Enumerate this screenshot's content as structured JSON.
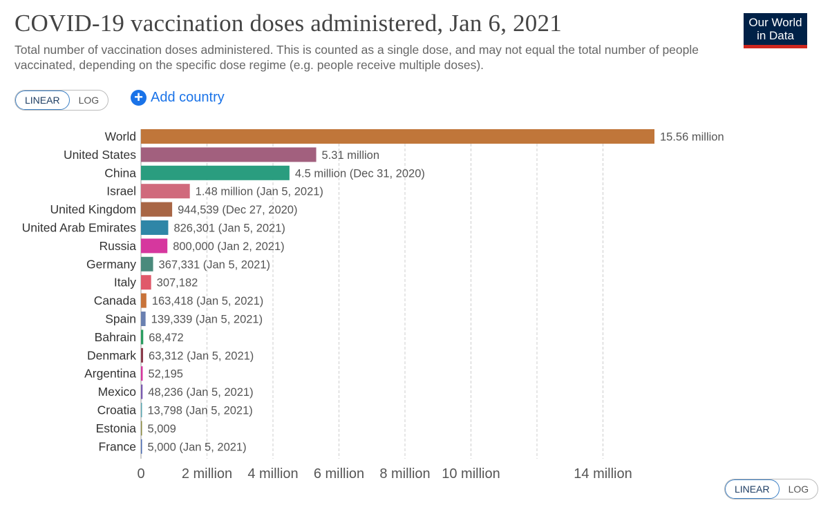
{
  "header": {
    "title": "COVID-19 vaccination doses administered, Jan 6, 2021",
    "subtitle": "Total number of vaccination doses administered. This is counted as a single dose, and may not equal the total number of people vaccinated, depending on the specific dose regime (e.g. people receive multiple doses).",
    "logo_line1": "Our World",
    "logo_line2": "in Data"
  },
  "controls": {
    "linear_label": "LINEAR",
    "log_label": "LOG",
    "add_country_label": "Add country",
    "add_icon": "+"
  },
  "colors": {
    "brand_navy": "#002147",
    "brand_red": "#ce261e",
    "link_blue": "#1a73e8"
  },
  "chart_data": {
    "type": "bar",
    "orientation": "horizontal",
    "grid": true,
    "xlim": [
      0,
      15560000
    ],
    "x_ticks": [
      {
        "value": 0,
        "label": "0"
      },
      {
        "value": 2000000,
        "label": "2 million"
      },
      {
        "value": 4000000,
        "label": "4 million"
      },
      {
        "value": 6000000,
        "label": "6 million"
      },
      {
        "value": 8000000,
        "label": "8 million"
      },
      {
        "value": 10000000,
        "label": "10 million"
      },
      {
        "value": 12000000,
        "label": ""
      },
      {
        "value": 14000000,
        "label": "14 million"
      }
    ],
    "bars": [
      {
        "category": "World",
        "value": 15560000,
        "label": "15.56 million",
        "color": "#c0763a"
      },
      {
        "category": "United States",
        "value": 5310000,
        "label": "5.31 million",
        "color": "#a2607e"
      },
      {
        "category": "China",
        "value": 4500000,
        "label": "4.5 million (Dec 31, 2020)",
        "color": "#2a9d7f"
      },
      {
        "category": "Israel",
        "value": 1480000,
        "label": "1.48 million (Jan 5, 2021)",
        "color": "#d06a7c"
      },
      {
        "category": "United Kingdom",
        "value": 944539,
        "label": "944,539 (Dec 27, 2020)",
        "color": "#a86645"
      },
      {
        "category": "United Arab Emirates",
        "value": 826301,
        "label": "826,301 (Jan 5, 2021)",
        "color": "#2f86a7"
      },
      {
        "category": "Russia",
        "value": 800000,
        "label": "800,000 (Jan 2, 2021)",
        "color": "#d6379e"
      },
      {
        "category": "Germany",
        "value": 367331,
        "label": "367,331 (Jan 5, 2021)",
        "color": "#4a8a7c"
      },
      {
        "category": "Italy",
        "value": 307182,
        "label": "307,182",
        "color": "#e0596a"
      },
      {
        "category": "Canada",
        "value": 163418,
        "label": "163,418 (Jan 5, 2021)",
        "color": "#c8733a"
      },
      {
        "category": "Spain",
        "value": 139339,
        "label": "139,339 (Jan 5, 2021)",
        "color": "#6a80b0"
      },
      {
        "category": "Bahrain",
        "value": 68472,
        "label": "68,472",
        "color": "#2a9d60"
      },
      {
        "category": "Denmark",
        "value": 63312,
        "label": "63,312 (Jan 5, 2021)",
        "color": "#8a3a4a"
      },
      {
        "category": "Argentina",
        "value": 52195,
        "label": "52,195",
        "color": "#d6379e"
      },
      {
        "category": "Mexico",
        "value": 48236,
        "label": "48,236 (Jan 5, 2021)",
        "color": "#7a5ab0"
      },
      {
        "category": "Croatia",
        "value": 13798,
        "label": "13,798 (Jan 5, 2021)",
        "color": "#5aa6b0"
      },
      {
        "category": "Estonia",
        "value": 5009,
        "label": "5,009",
        "color": "#8a8a40"
      },
      {
        "category": "France",
        "value": 5000,
        "label": "5,000 (Jan 5, 2021)",
        "color": "#4a6ab0"
      }
    ]
  }
}
